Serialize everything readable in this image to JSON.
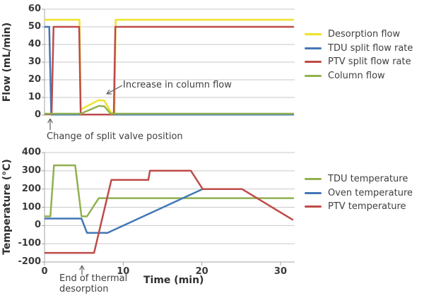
{
  "colors": {
    "yellow": "#EDE229",
    "blue": "#4377B7",
    "red": "#BE4B48",
    "green": "#8FB14F",
    "grid": "#C9C9C9",
    "axis": "#A3A3A3",
    "arrow": "#6A6A6A",
    "text": "#3B3B3B"
  },
  "chart_data": [
    {
      "id": "flow-chart",
      "type": "line",
      "title": "",
      "xlabel": "",
      "ylabel": "Flow (mL/min)",
      "xlim": [
        0,
        31.8
      ],
      "ylim": [
        0,
        60
      ],
      "grid": true,
      "legend_position": "right",
      "y_ticks": [
        60,
        50,
        40,
        30,
        20,
        10,
        0
      ],
      "x_ticks": [],
      "series": [
        {
          "name": "Desorption flow",
          "color": "#EDE229",
          "points": [
            [
              0,
              54
            ],
            [
              4.45,
              54
            ],
            [
              4.6,
              3.2
            ],
            [
              6.9,
              8.5
            ],
            [
              7.6,
              8.2
            ],
            [
              8.5,
              1.2
            ],
            [
              8.9,
              1.2
            ],
            [
              9.05,
              54
            ],
            [
              31.7,
              54
            ]
          ]
        },
        {
          "name": "TDU split flow rate",
          "color": "#4377B7",
          "points": [
            [
              0,
              50
            ],
            [
              0.6,
              50
            ],
            [
              0.85,
              0.3
            ],
            [
              31.7,
              0.3
            ]
          ]
        },
        {
          "name": "PTV split flow rate",
          "color": "#BE4B48",
          "points": [
            [
              0,
              0.5
            ],
            [
              0.9,
              0.5
            ],
            [
              1.15,
              50
            ],
            [
              4.4,
              50
            ],
            [
              4.6,
              0.3
            ],
            [
              8.8,
              0.3
            ],
            [
              9.0,
              50
            ],
            [
              31.7,
              50
            ]
          ]
        },
        {
          "name": "Column flow",
          "color": "#8FB14F",
          "points": [
            [
              0,
              0.8
            ],
            [
              4.6,
              0.8
            ],
            [
              6.9,
              5.2
            ],
            [
              7.6,
              5.0
            ],
            [
              8.4,
              0.8
            ],
            [
              31.7,
              0.8
            ]
          ]
        }
      ],
      "annotations": {
        "increase_label": "Increase in column flow",
        "valve_label": "Change of split valve position"
      }
    },
    {
      "id": "temperature-chart",
      "type": "line",
      "title": "",
      "xlabel": "Time (min)",
      "ylabel": "Temperature (°C)",
      "xlim": [
        0,
        31.8
      ],
      "ylim": [
        -200,
        400
      ],
      "grid": true,
      "legend_position": "right",
      "y_ticks": [
        400,
        300,
        200,
        100,
        0,
        -100,
        -200
      ],
      "x_ticks": [
        0,
        10,
        20,
        30
      ],
      "series": [
        {
          "name": "TDU temperature",
          "color": "#8FB14F",
          "points": [
            [
              0,
              50
            ],
            [
              0.75,
              50
            ],
            [
              1.2,
              330
            ],
            [
              3.9,
              330
            ],
            [
              4.7,
              50
            ],
            [
              5.4,
              50
            ],
            [
              6.9,
              150
            ],
            [
              31.7,
              150
            ]
          ]
        },
        {
          "name": "Oven temperature",
          "color": "#4377B7",
          "points": [
            [
              0,
              38
            ],
            [
              4.7,
              38
            ],
            [
              5.4,
              -40
            ],
            [
              8.0,
              -40
            ],
            [
              20.1,
              200
            ]
          ]
        },
        {
          "name": "PTV temperature",
          "color": "#BE4B48",
          "points": [
            [
              0,
              -150
            ],
            [
              6.3,
              -150
            ],
            [
              8.5,
              250
            ],
            [
              13.2,
              250
            ],
            [
              13.4,
              300
            ],
            [
              18.6,
              300
            ],
            [
              20.1,
              200
            ],
            [
              25.1,
              200
            ],
            [
              31.6,
              30
            ]
          ]
        }
      ],
      "annotations": {
        "desorption_end_label": "End of thermal desorption"
      }
    }
  ]
}
